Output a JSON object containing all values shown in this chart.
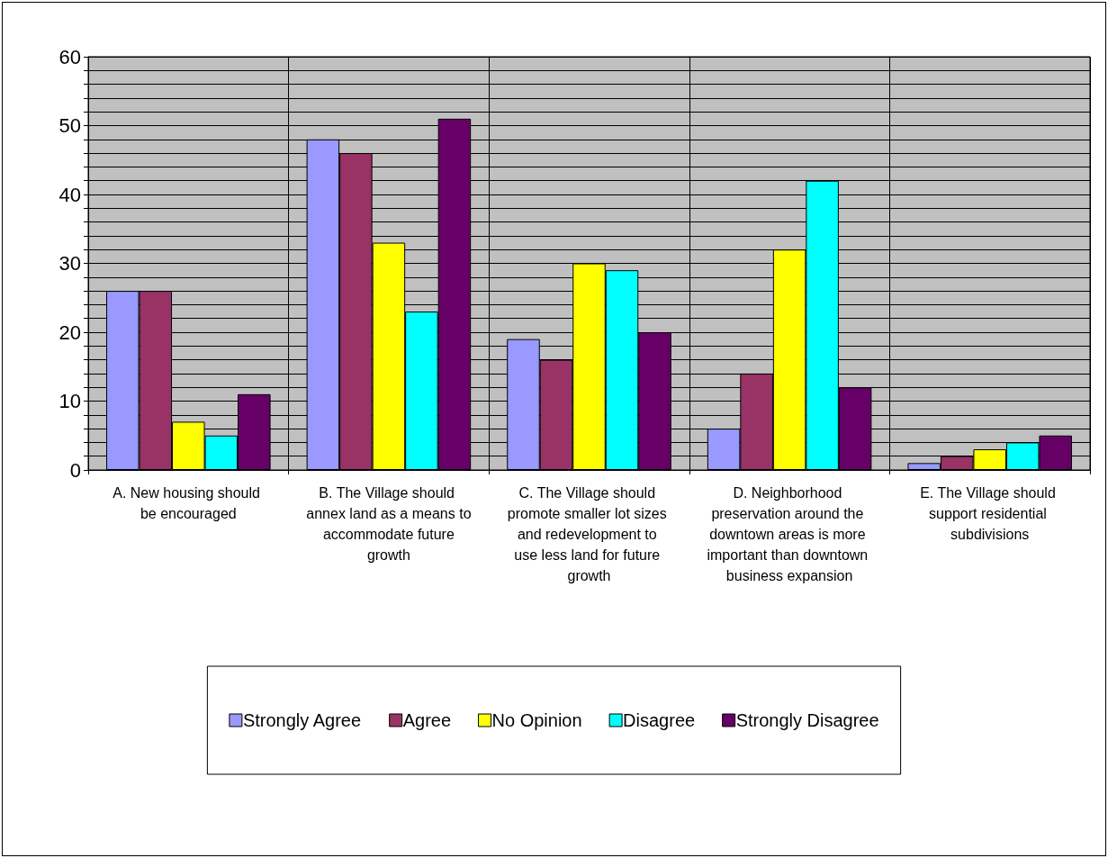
{
  "chart_data": {
    "type": "bar",
    "categories": [
      "A. New housing should be encouraged",
      "B. The Village should annex land as a means to accommodate future growth",
      "C. The Village should promote smaller lot sizes and redevelopment to use less land for future growth",
      "D. Neighborhood preservation around the downtown areas is more important than downtown business expansion",
      "E. The Village should support residential subdivisions"
    ],
    "series": [
      {
        "name": "Strongly Agree",
        "color": "#9999ff",
        "values": [
          26,
          48,
          19,
          6,
          1
        ]
      },
      {
        "name": "Agree",
        "color": "#993366",
        "values": [
          26,
          46,
          16,
          14,
          2
        ]
      },
      {
        "name": "No Opinion",
        "color": "#ffff00",
        "values": [
          7,
          33,
          30,
          32,
          3
        ]
      },
      {
        "name": "Disagree",
        "color": "#00ffff",
        "values": [
          5,
          23,
          29,
          42,
          4
        ]
      },
      {
        "name": "Strongly Disagree",
        "color": "#660066",
        "values": [
          11,
          51,
          20,
          12,
          5
        ]
      }
    ],
    "ylim": [
      0,
      60
    ],
    "yticks": [
      0,
      {
        "value": 2,
        "label": null
      },
      {
        "value": 4,
        "label": null
      },
      {
        "value": 6,
        "label": null
      },
      {
        "value": 8,
        "label": null
      },
      10,
      {
        "value": 12,
        "label": null
      },
      {
        "value": 14,
        "label": null
      },
      {
        "value": 16,
        "label": null
      },
      {
        "value": 18,
        "label": null
      },
      20,
      {
        "value": 22,
        "label": null
      },
      {
        "value": 24,
        "label": null
      },
      {
        "value": 26,
        "label": null
      },
      {
        "value": 28,
        "label": null
      },
      30,
      {
        "value": 32,
        "label": null
      },
      {
        "value": 34,
        "label": null
      },
      {
        "value": 36,
        "label": null
      },
      {
        "value": 38,
        "label": null
      },
      40,
      {
        "value": 42,
        "label": null
      },
      {
        "value": 44,
        "label": null
      },
      {
        "value": 46,
        "label": null
      },
      {
        "value": 48,
        "label": null
      },
      50,
      {
        "value": 52,
        "label": null
      },
      {
        "value": 54,
        "label": null
      },
      {
        "value": 56,
        "label": null
      },
      {
        "value": 58,
        "label": null
      },
      60
    ],
    "grid": true,
    "legend": "bottom"
  }
}
